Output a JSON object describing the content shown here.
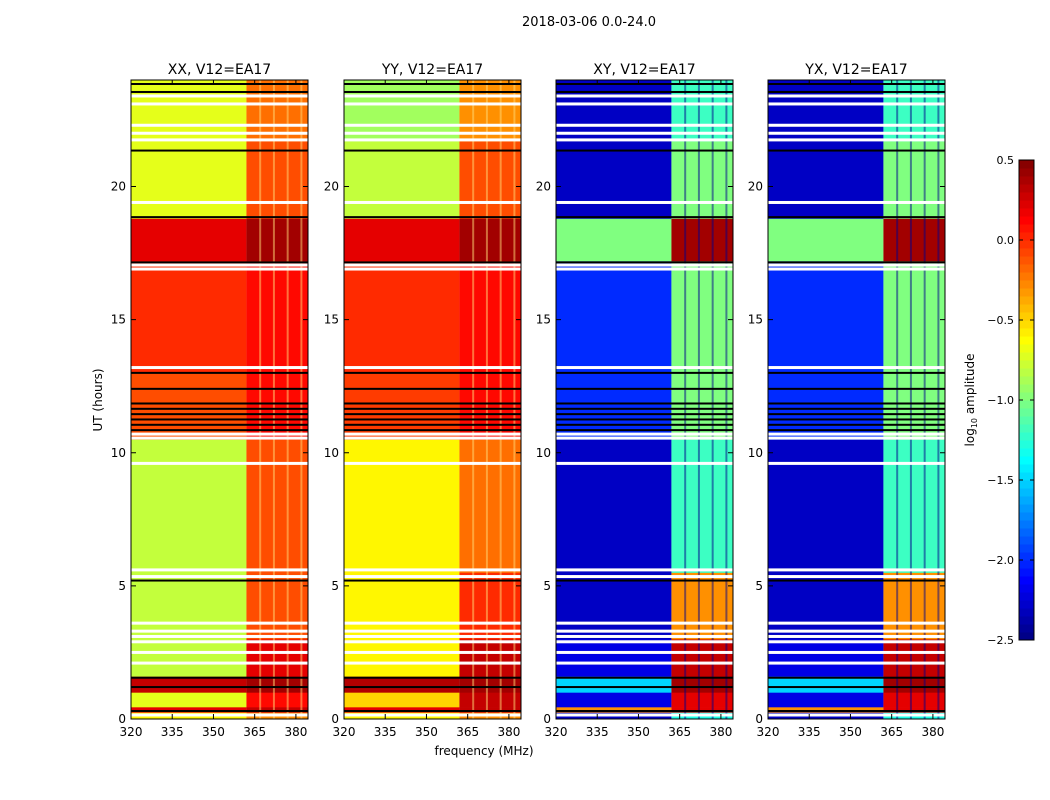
{
  "chart_data": {
    "type": "heatmap",
    "suptitle": "2018-03-06 0.0-24.0",
    "xlabel": "frequency (MHz)",
    "ylabel": "UT (hours)",
    "xlim": [
      320,
      384.4
    ],
    "ylim": [
      0,
      24
    ],
    "xticks": [
      "320",
      "335",
      "350",
      "365",
      "380"
    ],
    "xtick_values": [
      320,
      335,
      350,
      365,
      380
    ],
    "yticks": [
      "0",
      "5",
      "10",
      "15",
      "20"
    ],
    "ytick_values": [
      0,
      5,
      10,
      15,
      20
    ],
    "colorbar": {
      "label": "log10 amplitude",
      "label_main": "log",
      "label_sub": "10",
      "label_rest": " amplitude",
      "range": [
        -2.5,
        0.5
      ],
      "ticks": [
        "0.5",
        "0.0",
        "−0.5",
        "−1.0",
        "−1.5",
        "−2.0",
        "−2.5"
      ],
      "tick_values": [
        0.5,
        0.0,
        -0.5,
        -1.0,
        -1.5,
        -2.0,
        -2.5
      ],
      "colormap": "jet"
    },
    "band_split_mhz": 362,
    "channel_gaps_mhz": [
      367,
      372,
      377,
      382
    ],
    "panels": [
      {
        "title": "XX, V12=EA17"
      },
      {
        "title": "YY, V12=EA17"
      },
      {
        "title": "XY, V12=EA17"
      },
      {
        "title": "YX, V12=EA17"
      }
    ],
    "segments": [
      [
        0.0,
        0.25,
        [
          -0.6,
          -0.3,
          -0.6,
          -0.3,
          -2.3,
          -1.3,
          -2.3,
          -1.3
        ]
      ],
      [
        0.25,
        0.45,
        [
          0.2,
          0.3,
          0.2,
          0.3,
          -0.3,
          0.2,
          -0.3,
          0.2
        ]
      ],
      [
        0.45,
        1.0,
        [
          -0.7,
          0.1,
          -0.5,
          0.3,
          -2.2,
          0.2,
          -2.2,
          0.2
        ]
      ],
      [
        1.0,
        1.6,
        [
          0.3,
          0.4,
          0.35,
          0.4,
          -1.5,
          0.4,
          -1.5,
          0.4
        ]
      ],
      [
        1.6,
        3.0,
        [
          -0.8,
          0.2,
          -0.6,
          0.3,
          -2.2,
          0.3,
          -2.2,
          0.3
        ]
      ],
      [
        3.0,
        5.5,
        [
          -0.8,
          -0.1,
          -0.6,
          0.0,
          -2.3,
          -0.3,
          -2.3,
          -0.3
        ]
      ],
      [
        5.5,
        10.5,
        [
          -0.8,
          -0.1,
          -0.6,
          -0.2,
          -2.3,
          -1.2,
          -2.3,
          -1.2
        ]
      ],
      [
        10.5,
        13.0,
        [
          -0.1,
          0.1,
          -0.05,
          0.1,
          -2.0,
          -1.0,
          -2.0,
          -1.0
        ]
      ],
      [
        13.0,
        17.2,
        [
          0.0,
          0.1,
          0.0,
          0.1,
          -2.0,
          -1.0,
          -2.0,
          -1.0
        ]
      ],
      [
        17.2,
        18.8,
        [
          0.2,
          0.4,
          0.2,
          0.4,
          -1.0,
          0.4,
          -1.0,
          0.4
        ]
      ],
      [
        18.8,
        21.7,
        [
          -0.7,
          -0.1,
          -0.8,
          -0.1,
          -2.3,
          -1.0,
          -2.3,
          -1.0
        ]
      ],
      [
        21.7,
        24.0,
        [
          -0.7,
          -0.2,
          -0.9,
          -0.3,
          -2.3,
          -1.2,
          -2.3,
          -1.2
        ]
      ]
    ],
    "flagged_rows_hr": [
      0.15,
      2.1,
      2.5,
      2.9,
      3.1,
      3.3,
      3.6,
      5.35,
      5.6,
      9.6,
      10.55,
      10.7,
      13.2,
      16.9,
      17.05,
      19.4,
      21.75,
      22.0,
      22.3,
      23.1,
      23.4
    ],
    "black_rows_hr": [
      0.3,
      1.2,
      1.55,
      5.2,
      10.85,
      11.05,
      11.25,
      11.45,
      11.65,
      11.85,
      12.4,
      13.0,
      17.15,
      18.85,
      21.35,
      23.55,
      23.85
    ]
  }
}
